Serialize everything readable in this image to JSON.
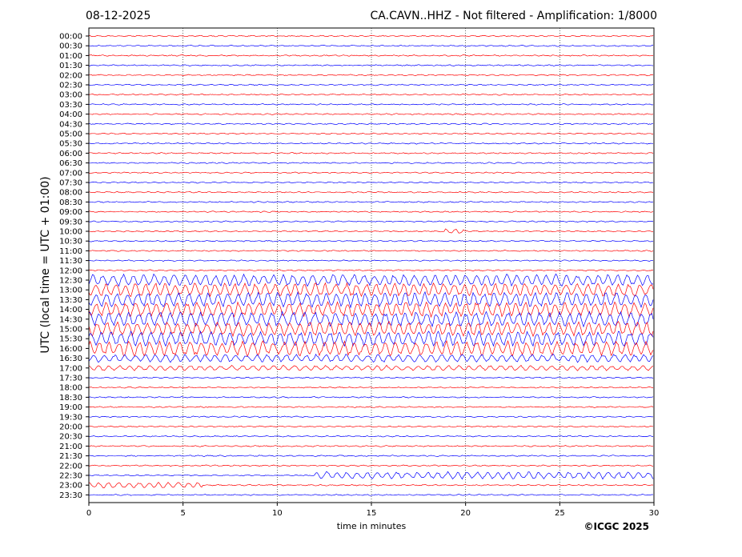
{
  "header": {
    "date": "08-12-2025",
    "title": "CA.CAVN..HHZ - Not filtered - Amplification: 1/8000"
  },
  "footer": {
    "copyright": "©ICGC 2025"
  },
  "colors": {
    "even_trace": "#ff0000",
    "odd_trace": "#0000ff",
    "axis": "#000000",
    "grid": "#000000"
  },
  "chart_data": {
    "type": "line",
    "title": "CA.CAVN..HHZ - Not filtered - Amplification: 1/8000",
    "xlabel": "time in minutes",
    "ylabel": "UTC (local time = UTC + 01:00)",
    "xlim": [
      0,
      30
    ],
    "x_ticks": [
      0,
      5,
      10,
      15,
      20,
      25,
      30
    ],
    "grid": "vertical dotted at x ticks",
    "rows": [
      "00:00",
      "00:30",
      "01:00",
      "01:30",
      "02:00",
      "02:30",
      "03:00",
      "03:30",
      "04:00",
      "04:30",
      "05:00",
      "05:30",
      "06:00",
      "06:30",
      "07:00",
      "07:30",
      "08:00",
      "08:30",
      "09:00",
      "09:30",
      "10:00",
      "10:30",
      "11:00",
      "11:30",
      "12:00",
      "12:30",
      "13:00",
      "13:30",
      "14:00",
      "14:30",
      "15:00",
      "15:30",
      "16:00",
      "16:30",
      "17:00",
      "17:30",
      "18:00",
      "18:30",
      "19:00",
      "19:30",
      "20:00",
      "20:30",
      "21:00",
      "21:30",
      "22:00",
      "22:30",
      "23:00",
      "23:30"
    ],
    "trace_activity": [
      {
        "row": "10:00",
        "x_start": 18.9,
        "x_end": 19.9,
        "level": 0.3
      },
      {
        "row": "12:30",
        "x_start": 0,
        "x_end": 30,
        "level": 0.8
      },
      {
        "row": "13:00",
        "x_start": 0,
        "x_end": 30,
        "level": 0.9
      },
      {
        "row": "13:30",
        "x_start": 0,
        "x_end": 30,
        "level": 1.0
      },
      {
        "row": "14:00",
        "x_start": 0,
        "x_end": 30,
        "level": 1.0
      },
      {
        "row": "14:30",
        "x_start": 0,
        "x_end": 30,
        "level": 1.0
      },
      {
        "row": "15:00",
        "x_start": 0,
        "x_end": 30,
        "level": 1.0
      },
      {
        "row": "15:30",
        "x_start": 0,
        "x_end": 30,
        "level": 1.0
      },
      {
        "row": "16:00",
        "x_start": 0,
        "x_end": 30,
        "level": 1.0
      },
      {
        "row": "16:30",
        "x_start": 0,
        "x_end": 30,
        "level": 0.5
      },
      {
        "row": "17:00",
        "x_start": 0,
        "x_end": 30,
        "level": 0.3
      },
      {
        "row": "22:30",
        "x_start": 12,
        "x_end": 30,
        "level": 0.45
      },
      {
        "row": "23:00",
        "x_start": 0,
        "x_end": 6,
        "level": 0.35
      }
    ]
  }
}
